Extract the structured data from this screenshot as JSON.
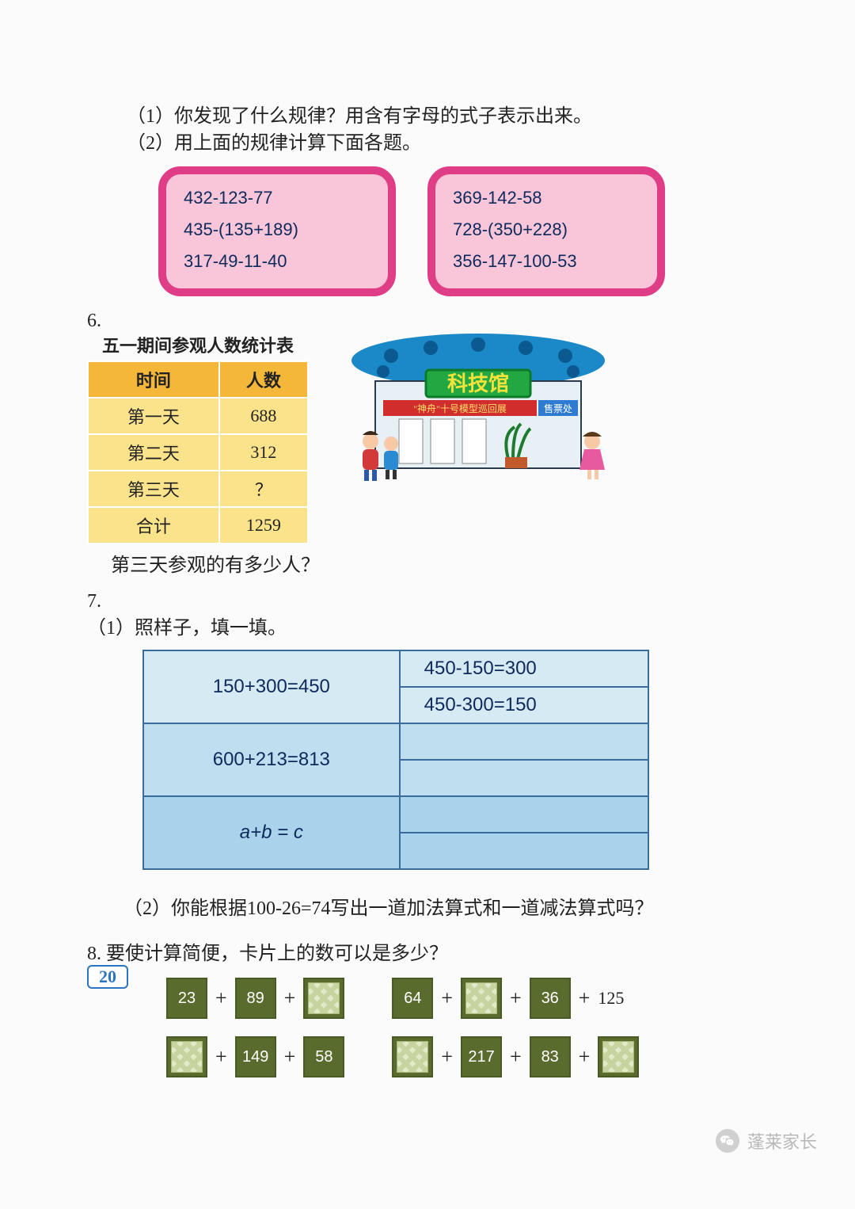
{
  "q1": "（1）你发现了什么规律？用含有字母的式子表示出来。",
  "q2": "（2）用上面的规律计算下面各题。",
  "card_left": [
    "432-123-77",
    "435-(135+189)",
    "317-49-11-40"
  ],
  "card_right": [
    "369-142-58",
    "728-(350+228)",
    "356-147-100-53"
  ],
  "p6_num": "6.",
  "p6_title": "五一期间参观人数统计表",
  "p6_headers": [
    "时间",
    "人数"
  ],
  "p6_rows": [
    [
      "第一天",
      "688"
    ],
    [
      "第二天",
      "312"
    ],
    [
      "第三天",
      "？"
    ],
    [
      "合计",
      "1259"
    ]
  ],
  "p6_q": "第三天参观的有多少人？",
  "museum": {
    "sign": "科技馆",
    "banner": "\"神舟\"十号模型巡回展",
    "booth": "售票处",
    "colors": {
      "roof": "#1b88c7",
      "dots": "#0a5a8f",
      "wall": "#e7f0f5",
      "sign_bg": "#21a843",
      "sign_border": "#0d7a2a",
      "banner_bg": "#d22d2d",
      "booth_bg": "#2e7bd1"
    }
  },
  "p7_num": "7.",
  "p7_q1": "（1）照样子，填一填。",
  "p7_table": {
    "r1c1": "150+300=450",
    "r1c2a": "450-150=300",
    "r1c2b": "450-300=150",
    "r2c1": "600+213=813",
    "r3c1": "a+b = c"
  },
  "p7_q2": "（2）你能根据100-26=74写出一道加法算式和一道减法算式吗？",
  "p8_num": "8.",
  "p8_q": "要使计算简便，卡片上的数可以是多少？",
  "p8_rows": [
    [
      {
        "chips": [
          "23",
          "89",
          ""
        ],
        "trail": ""
      },
      {
        "chips": [
          "64",
          "",
          "36"
        ],
        "trail": "125"
      }
    ],
    [
      {
        "chips": [
          "",
          "149",
          "58"
        ],
        "trail": ""
      },
      {
        "chips": [
          "",
          "217",
          "83",
          ""
        ],
        "trail": ""
      }
    ]
  ],
  "page_number": "20",
  "watermark": "蓬莱家长"
}
